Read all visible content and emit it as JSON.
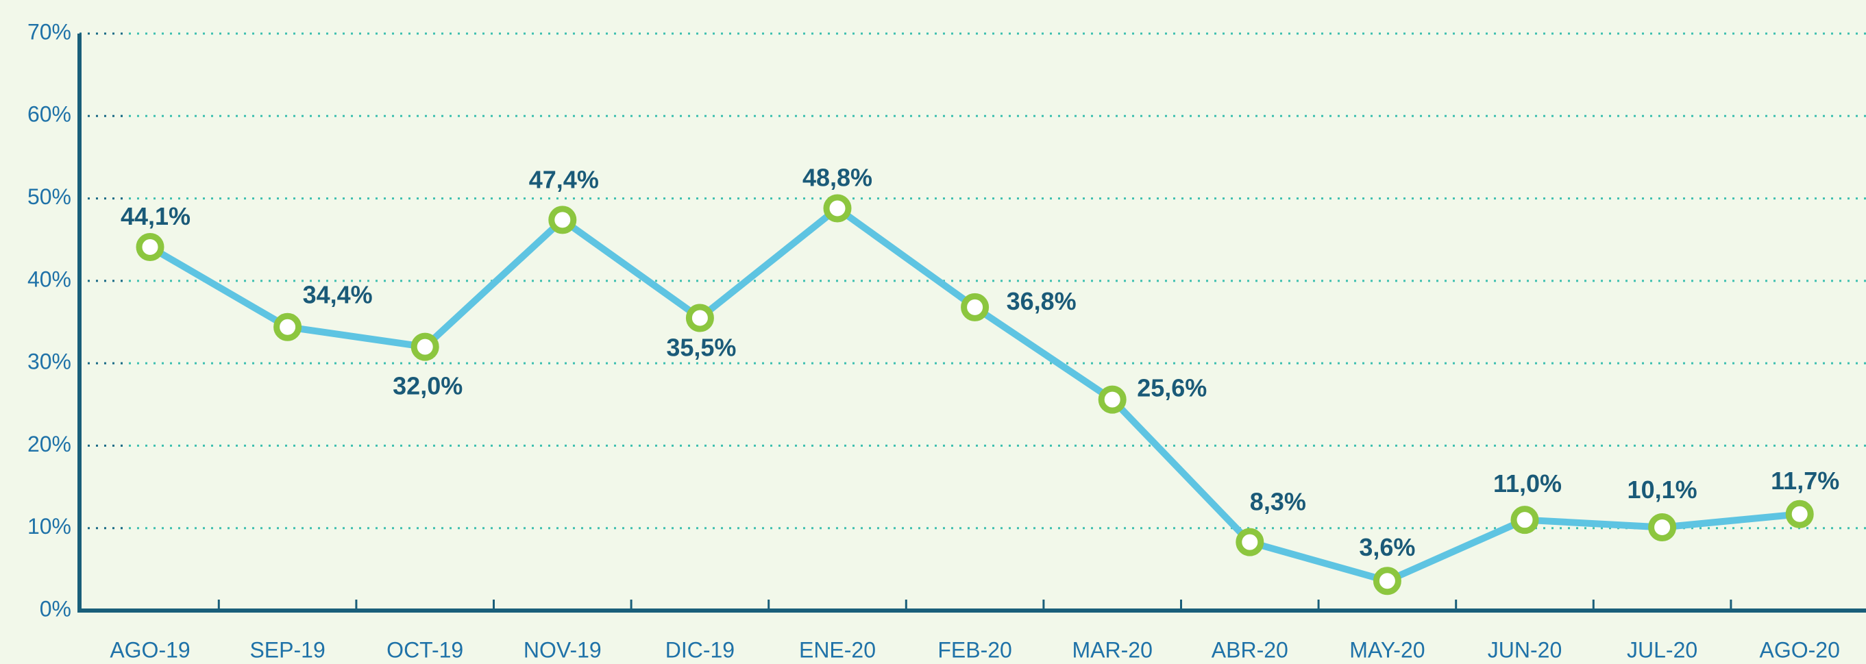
{
  "chart_data": {
    "type": "line",
    "categories": [
      "AGO-19",
      "SEP-19",
      "OCT-19",
      "NOV-19",
      "DIC-19",
      "ENE-20",
      "FEB-20",
      "MAR-20",
      "ABR-20",
      "MAY-20",
      "JUN-20",
      "JUL-20",
      "AGO-20"
    ],
    "series": [
      {
        "color": "#5ec4e2",
        "marker_color": "#8cc63f",
        "values": [
          44.1,
          34.4,
          32.0,
          47.4,
          35.5,
          48.8,
          36.8,
          25.6,
          8.3,
          3.6,
          11.0,
          10.1,
          11.7
        ],
        "value_labels": [
          "44,1%",
          "34,4%",
          "32,0%",
          "47,4%",
          "35,5%",
          "48,8%",
          "36,8%",
          "25,6%",
          "8,3%",
          "3,6%",
          "11,0%",
          "10,1%",
          "11,7%"
        ]
      }
    ],
    "ylim": [
      0,
      70
    ],
    "yticks": [
      {
        "value": 0,
        "label": "0%"
      },
      {
        "value": 10,
        "label": "10%"
      },
      {
        "value": 20,
        "label": "20%"
      },
      {
        "value": 30,
        "label": "30%"
      },
      {
        "value": 40,
        "label": "40%"
      },
      {
        "value": 50,
        "label": "50%"
      },
      {
        "value": 60,
        "label": "60%"
      },
      {
        "value": 70,
        "label": "70%"
      }
    ],
    "grid": true
  }
}
